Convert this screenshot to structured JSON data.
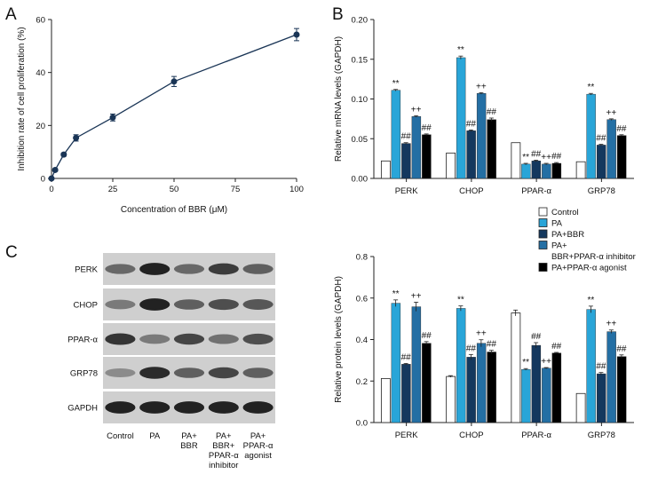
{
  "colors": {
    "control": "#ffffff",
    "pa": "#29a5d8",
    "pa_bbr": "#14385e",
    "pa_bbr_inhibitor": "#246fa4",
    "pa_agonist": "#000000",
    "line": "#1a3556"
  },
  "legend": {
    "items": [
      "Control",
      "PA",
      "PA+BBR",
      "PA+",
      "BBR+PPAR-α inhibitor",
      "PA+PPAR-α agonist"
    ]
  },
  "chart_data": [
    {
      "panel": "A",
      "type": "line",
      "xlabel": "Concentration of BBR (μM)",
      "ylabel": "Inhibition rate of cell proliferation (%)",
      "xlim": [
        0,
        100
      ],
      "ylim": [
        0,
        60
      ],
      "xticks": [
        "0",
        "25",
        "50",
        "75",
        "100"
      ],
      "yticks": [
        "0",
        "20",
        "40",
        "60"
      ],
      "x": [
        0,
        1.5,
        5,
        10,
        25,
        50,
        100
      ],
      "y": [
        0,
        3.2,
        9,
        15.3,
        23,
        36.6,
        54.3
      ],
      "error": [
        0.3,
        0.5,
        0.6,
        1.2,
        1.3,
        1.9,
        2.3
      ]
    },
    {
      "panel": "B",
      "type": "bar",
      "ylabel": "Relative mRNA levels (GAPDH)",
      "ylim": [
        0,
        0.2
      ],
      "yticks": [
        "0.00",
        "0.05",
        "0.10",
        "0.15",
        "0.20"
      ],
      "categories": [
        "PERK",
        "CHOP",
        "PPAR-α",
        "GRP78"
      ],
      "series": [
        {
          "name": "Control",
          "values": [
            0.022,
            0.032,
            0.045,
            0.021
          ],
          "error": [
            0,
            0,
            0,
            0
          ]
        },
        {
          "name": "PA",
          "values": [
            0.111,
            0.152,
            0.018,
            0.106
          ],
          "error": [
            0.001,
            0.002,
            0.001,
            0.001
          ]
        },
        {
          "name": "PA+BBR",
          "values": [
            0.044,
            0.06,
            0.022,
            0.042
          ],
          "error": [
            0.001,
            0.001,
            0.001,
            0.001
          ]
        },
        {
          "name": "PA+BBR+PPAR-α inhibitor",
          "values": [
            0.078,
            0.107,
            0.018,
            0.074
          ],
          "error": [
            0.001,
            0.001,
            0.001,
            0.001
          ]
        },
        {
          "name": "PA+PPAR-α agonist",
          "values": [
            0.055,
            0.074,
            0.019,
            0.054
          ],
          "error": [
            0.001,
            0.002,
            0.001,
            0.001
          ]
        }
      ],
      "annotations": [
        [
          "",
          "**",
          "##",
          "++",
          "##"
        ],
        [
          "",
          "**",
          "##",
          "++",
          "##"
        ],
        [
          "",
          "**",
          "##",
          "++",
          "##"
        ],
        [
          "",
          "**",
          "##",
          "++",
          "##"
        ]
      ]
    },
    {
      "panel": "C",
      "type": "bar",
      "ylabel": "Relative protein levels (GAPDH)",
      "ylim": [
        0,
        0.8
      ],
      "yticks": [
        "0.0",
        "0.2",
        "0.4",
        "0.6",
        "0.8"
      ],
      "categories": [
        "PERK",
        "CHOP",
        "PPAR-α",
        "GRP78"
      ],
      "series": [
        {
          "name": "Control",
          "values": [
            0.212,
            0.222,
            0.528,
            0.14
          ],
          "error": [
            0,
            0.004,
            0.014,
            0
          ]
        },
        {
          "name": "PA",
          "values": [
            0.575,
            0.55,
            0.256,
            0.545
          ],
          "error": [
            0.016,
            0.012,
            0.004,
            0.016
          ]
        },
        {
          "name": "PA+BBR",
          "values": [
            0.281,
            0.315,
            0.372,
            0.235
          ],
          "error": [
            0.004,
            0.013,
            0.013,
            0.006
          ]
        },
        {
          "name": "PA+BBR+PPAR-α inhibitor",
          "values": [
            0.558,
            0.382,
            0.262,
            0.438
          ],
          "error": [
            0.022,
            0.017,
            0.003,
            0.008
          ]
        },
        {
          "name": "PA+PPAR-α agonist",
          "values": [
            0.382,
            0.34,
            0.335,
            0.318
          ],
          "error": [
            0.008,
            0.008,
            0.003,
            0.008
          ]
        }
      ],
      "annotations": [
        [
          "",
          "**",
          "##",
          "++",
          "##"
        ],
        [
          "",
          "**",
          "##",
          "++",
          "##"
        ],
        [
          "",
          "**",
          "##",
          "++",
          "##"
        ],
        [
          "",
          "**",
          "##",
          "++",
          "##"
        ]
      ]
    }
  ],
  "blot": {
    "rows": [
      "PERK",
      "CHOP",
      "PPAR-α",
      "GRP78",
      "GAPDH"
    ],
    "lanes": [
      {
        "lines": [
          "Control"
        ]
      },
      {
        "lines": [
          "PA"
        ]
      },
      {
        "lines": [
          "PA+",
          "BBR"
        ]
      },
      {
        "lines": [
          "PA+",
          "BBR+",
          "PPAR-α",
          "inhibitor"
        ]
      },
      {
        "lines": [
          "PA+",
          "PPAR-α",
          "agonist"
        ]
      }
    ],
    "intensity": [
      [
        0.55,
        0.95,
        0.55,
        0.8,
        0.6
      ],
      [
        0.45,
        0.95,
        0.6,
        0.7,
        0.65
      ],
      [
        0.85,
        0.45,
        0.75,
        0.5,
        0.7
      ],
      [
        0.35,
        0.9,
        0.6,
        0.75,
        0.6
      ],
      [
        0.95,
        0.95,
        0.95,
        0.95,
        0.95
      ]
    ]
  },
  "panels": {
    "a": "A",
    "b": "B",
    "c": "C"
  }
}
